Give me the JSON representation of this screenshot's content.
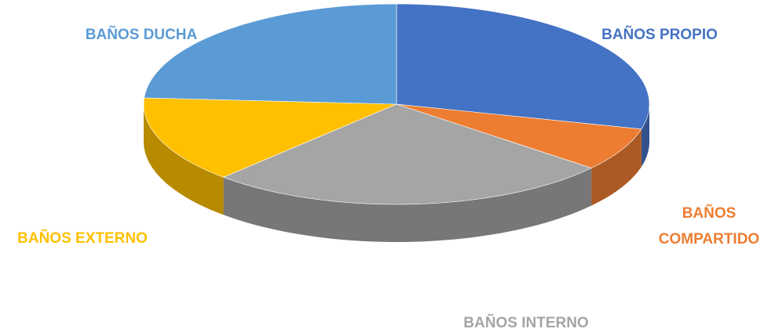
{
  "chart_data": {
    "type": "pie",
    "categories": [
      "BAÑOS PROPIO",
      "BAÑOS COMPARTIDO",
      "BAÑOS INTERNO",
      "BAÑOS EXTERNO",
      "BAÑOS DUCHA"
    ],
    "values": [
      29,
      7,
      26,
      14,
      24
    ],
    "colors": [
      "#4472c4",
      "#ed7d31",
      "#a5a5a5",
      "#ffc000",
      "#5b9bd5"
    ]
  }
}
